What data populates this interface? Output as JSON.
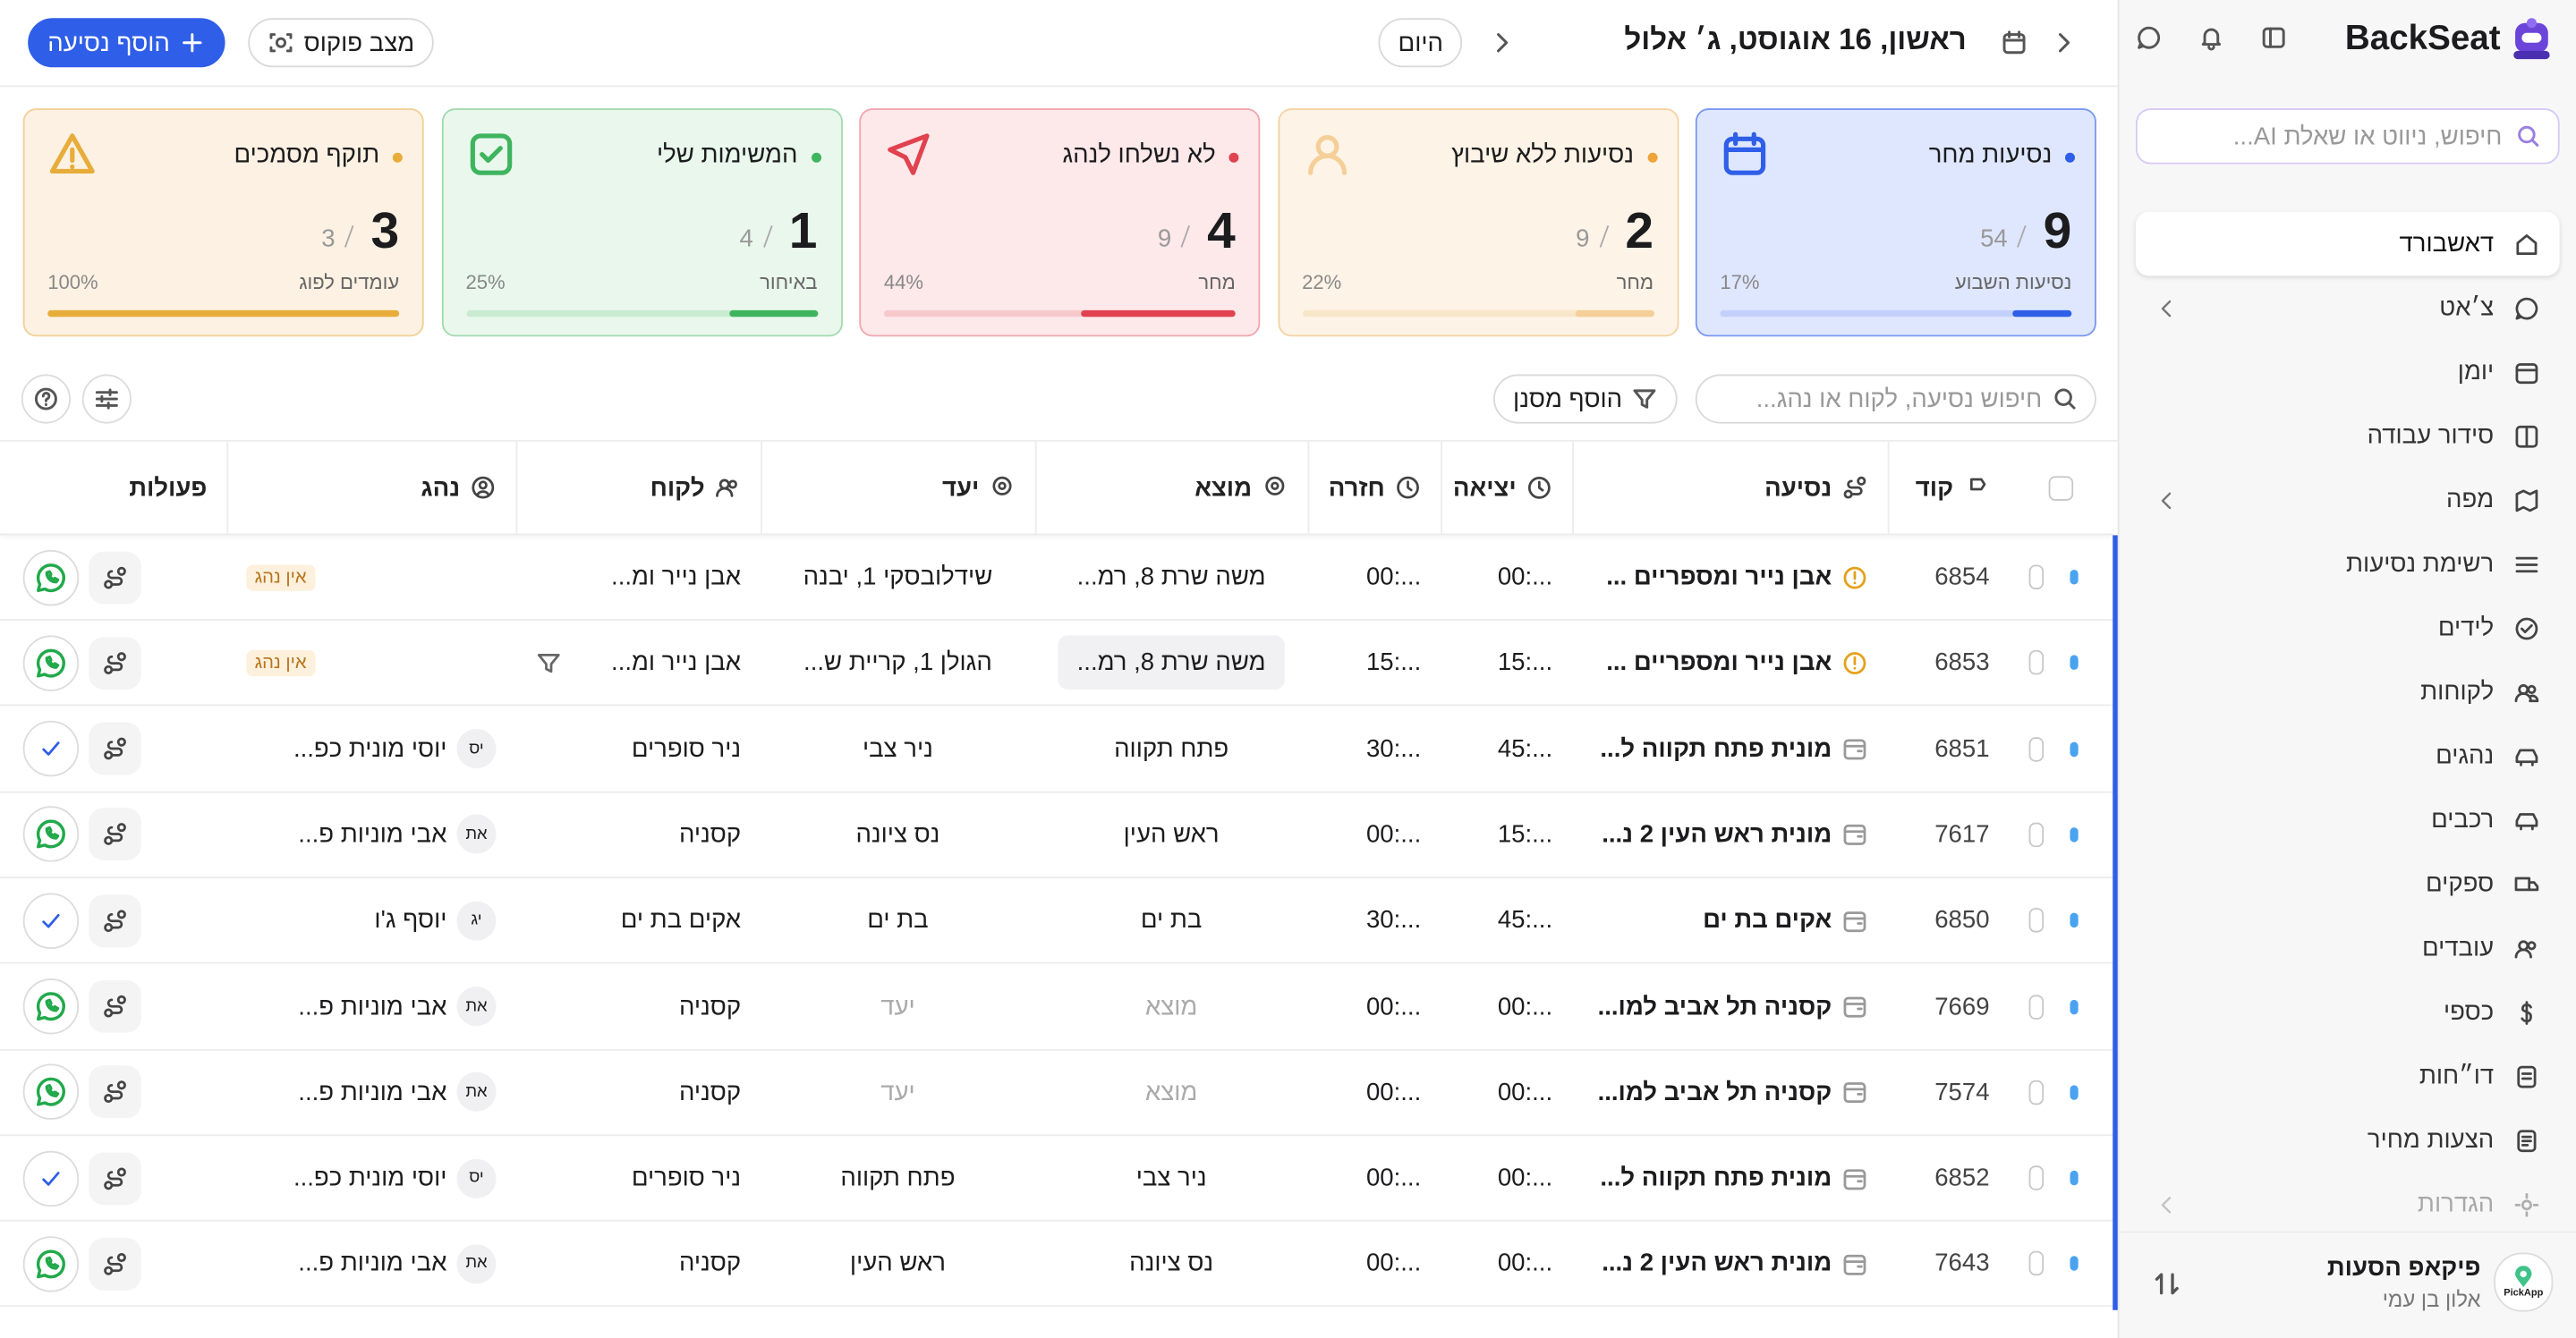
{
  "sidebar": {
    "brand": "BackSeat",
    "search_placeholder": "חיפוש, ניווט או שאלת AI...",
    "nav": [
      {
        "label": "דאשבורד",
        "active": true
      },
      {
        "label": "צ׳אט",
        "chevron": true
      },
      {
        "label": "יומן"
      },
      {
        "label": "סידור עבודה"
      },
      {
        "label": "מפה",
        "chevron": true
      },
      {
        "label": "רשימת נסיעות"
      },
      {
        "label": "לידים"
      },
      {
        "label": "לקוחות"
      },
      {
        "label": "נהגים"
      },
      {
        "label": "רכבים"
      },
      {
        "label": "ספקים"
      },
      {
        "label": "עובדים"
      },
      {
        "label": "כספי"
      },
      {
        "label": "דו״חות"
      },
      {
        "label": "הצעות מחיר"
      },
      {
        "label": "הגדרות",
        "chevron": true,
        "faded": true
      }
    ],
    "account": {
      "name": "פיקאפ הסעות",
      "user": "אלון בן עמי",
      "logo": "PickApp"
    }
  },
  "header": {
    "date": "ראשון, 16 אוגוסט, ג׳ אלול",
    "today": "היום",
    "focus": "מצב פוקוס",
    "add_trip": "הוסף נסיעה"
  },
  "cards": [
    {
      "title": "נסיעות מחר",
      "value": "9",
      "total": "54",
      "sublabel": "נסיעות השבוע",
      "percent": "17%",
      "bg": "#dfe7ff",
      "border": "#7b98f0",
      "bar": "#2f5ee8",
      "track": "#c3d0fb",
      "dot": "#2f5ee8"
    },
    {
      "title": "נסיעות ללא שיבוץ",
      "value": "2",
      "total": "9",
      "sublabel": "מחר",
      "percent": "22%",
      "bg": "#fdf3e6",
      "border": "#f4d3a4",
      "bar": "#f4cf97",
      "track": "#f8e6c9",
      "dot": "#f0a33a"
    },
    {
      "title": "לא נשלחו לנהג",
      "value": "4",
      "total": "9",
      "sublabel": "מחר",
      "percent": "44%",
      "bg": "#fde8ea",
      "border": "#f1a7ae",
      "bar": "#e0434f",
      "track": "#f6c9cd",
      "dot": "#e0434f"
    },
    {
      "title": "המשימות שלי",
      "value": "1",
      "total": "4",
      "sublabel": "באיחור",
      "percent": "25%",
      "bg": "#e9f7ec",
      "border": "#a3dbb0",
      "bar": "#3fb45e",
      "track": "#c9ecd1",
      "dot": "#3fb45e"
    },
    {
      "title": "תוקף מסמכים",
      "value": "3",
      "total": "3",
      "sublabel": "עומדים לפוג",
      "percent": "100%",
      "bg": "#fcf1e2",
      "border": "#f2d096",
      "bar": "#e7ac3a",
      "track": "#f6dfb5",
      "dot": "#e7ac3a"
    }
  ],
  "toolbar": {
    "search_placeholder": "חיפוש נסיעה, לקוח או נהג...",
    "add_filter": "הוסף מסנן"
  },
  "table": {
    "headers": [
      "קוד",
      "נסיעה",
      "יציאה",
      "חזרה",
      "מוצא",
      "יעד",
      "לקוח",
      "נהג",
      "פעולות"
    ],
    "rows": [
      {
        "code": "6854",
        "trip": "אבן נייר ומספריים ...",
        "out": "00:...",
        "ret": "00:...",
        "origin": "משה שרת 8, רמ...",
        "dest": "שידלובסקי 1, יבנה",
        "client": "אבן נייר ומ...",
        "badge": "אין נהג",
        "action": "whatsapp"
      },
      {
        "code": "6853",
        "trip": "אבן נייר ומספריים ...",
        "out": "15:...",
        "ret": "15:...",
        "origin": "משה שרת 8, רמ...",
        "dest": "הגולן 1, קריית ש...",
        "client": "אבן נייר ומ...",
        "badge": "אין נהג",
        "action": "whatsapp",
        "hover": true
      },
      {
        "code": "6851",
        "trip": "מונית פתח תקווה ל...",
        "out": "45:...",
        "ret": "30:...",
        "origin": "פתח תקווה",
        "dest": "ניר צבי",
        "client": "ניר סופרים",
        "initials": "יס",
        "driver": "יוסי מונית כפ...",
        "action": "check"
      },
      {
        "code": "7617",
        "trip": "מונית ראש העין 2 נ...",
        "out": "15:...",
        "ret": "00:...",
        "origin": "ראש העין",
        "dest": "נס ציונה",
        "client": "קסניה",
        "initials": "את",
        "driver": "אבי מוניות פ...",
        "action": "whatsapp"
      },
      {
        "code": "6850",
        "trip": "אקים בת ים",
        "out": "45:...",
        "ret": "30:...",
        "origin": "בת ים",
        "dest": "בת ים",
        "client": "אקים בת ים",
        "initials": "יג",
        "driver": "יוסף ג'ו",
        "action": "check"
      },
      {
        "code": "7669",
        "trip": "קסניה תל אביב למו...",
        "out": "00:...",
        "ret": "00:...",
        "origin": "מוצא",
        "dest": "יעד",
        "muted": true,
        "client": "קסניה",
        "initials": "את",
        "driver": "אבי מוניות פ...",
        "action": "whatsapp"
      },
      {
        "code": "7574",
        "trip": "קסניה תל אביב למו...",
        "out": "00:...",
        "ret": "00:...",
        "origin": "מוצא",
        "dest": "יעד",
        "muted": true,
        "client": "קסניה",
        "initials": "את",
        "driver": "אבי מוניות פ...",
        "action": "whatsapp"
      },
      {
        "code": "6852",
        "trip": "מונית פתח תקווה ל...",
        "out": "00:...",
        "ret": "00:...",
        "origin": "ניר צבי",
        "dest": "פתח תקווה",
        "client": "ניר סופרים",
        "initials": "יס",
        "driver": "יוסי מונית כפ...",
        "action": "check"
      },
      {
        "code": "7643",
        "trip": "מונית ראש העין 2 נ...",
        "out": "00:...",
        "ret": "00:...",
        "origin": "נס ציונה",
        "dest": "ראש העין",
        "client": "קסניה",
        "initials": "את",
        "driver": "אבי מוניות פ...",
        "action": "whatsapp"
      }
    ]
  }
}
